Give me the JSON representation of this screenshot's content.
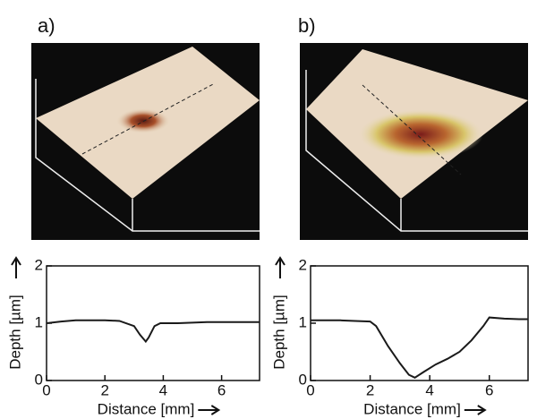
{
  "chart_data": [
    {
      "type": "line",
      "label": "a)",
      "x_label": "Distance [mm]",
      "y_label": "Depth [µm]",
      "x": [
        0,
        0.5,
        1,
        1.5,
        2,
        2.5,
        3,
        3.2,
        3.4,
        3.5,
        3.7,
        3.9,
        4.5,
        5,
        5.5,
        6,
        6.5,
        7,
        7.3
      ],
      "values": [
        1.0,
        1.03,
        1.05,
        1.05,
        1.05,
        1.04,
        0.95,
        0.8,
        0.68,
        0.75,
        0.95,
        1.0,
        1.0,
        1.01,
        1.02,
        1.02,
        1.02,
        1.02,
        1.02
      ],
      "color": "#1a1a1a",
      "xlim": [
        0,
        7.3
      ],
      "ylim": [
        0,
        2
      ],
      "xticks": [
        0,
        2,
        4,
        6
      ],
      "yticks": [
        0,
        1,
        2
      ]
    },
    {
      "type": "line",
      "label": "b)",
      "x_label": "Distance [mm]",
      "y_label": "Depth [µm]",
      "x": [
        0,
        0.5,
        1,
        1.5,
        2,
        2.2,
        2.6,
        3,
        3.3,
        3.5,
        3.8,
        4.2,
        4.6,
        5,
        5.4,
        5.8,
        6,
        6.5,
        7,
        7.3
      ],
      "values": [
        1.05,
        1.05,
        1.05,
        1.04,
        1.03,
        0.95,
        0.6,
        0.3,
        0.1,
        0.05,
        0.15,
        0.28,
        0.38,
        0.5,
        0.7,
        0.95,
        1.1,
        1.08,
        1.07,
        1.07
      ],
      "color": "#1a1a1a",
      "xlim": [
        0,
        7.3
      ],
      "ylim": [
        0,
        2
      ],
      "xticks": [
        0,
        2,
        4,
        6
      ],
      "yticks": [
        0,
        1,
        2
      ]
    }
  ]
}
